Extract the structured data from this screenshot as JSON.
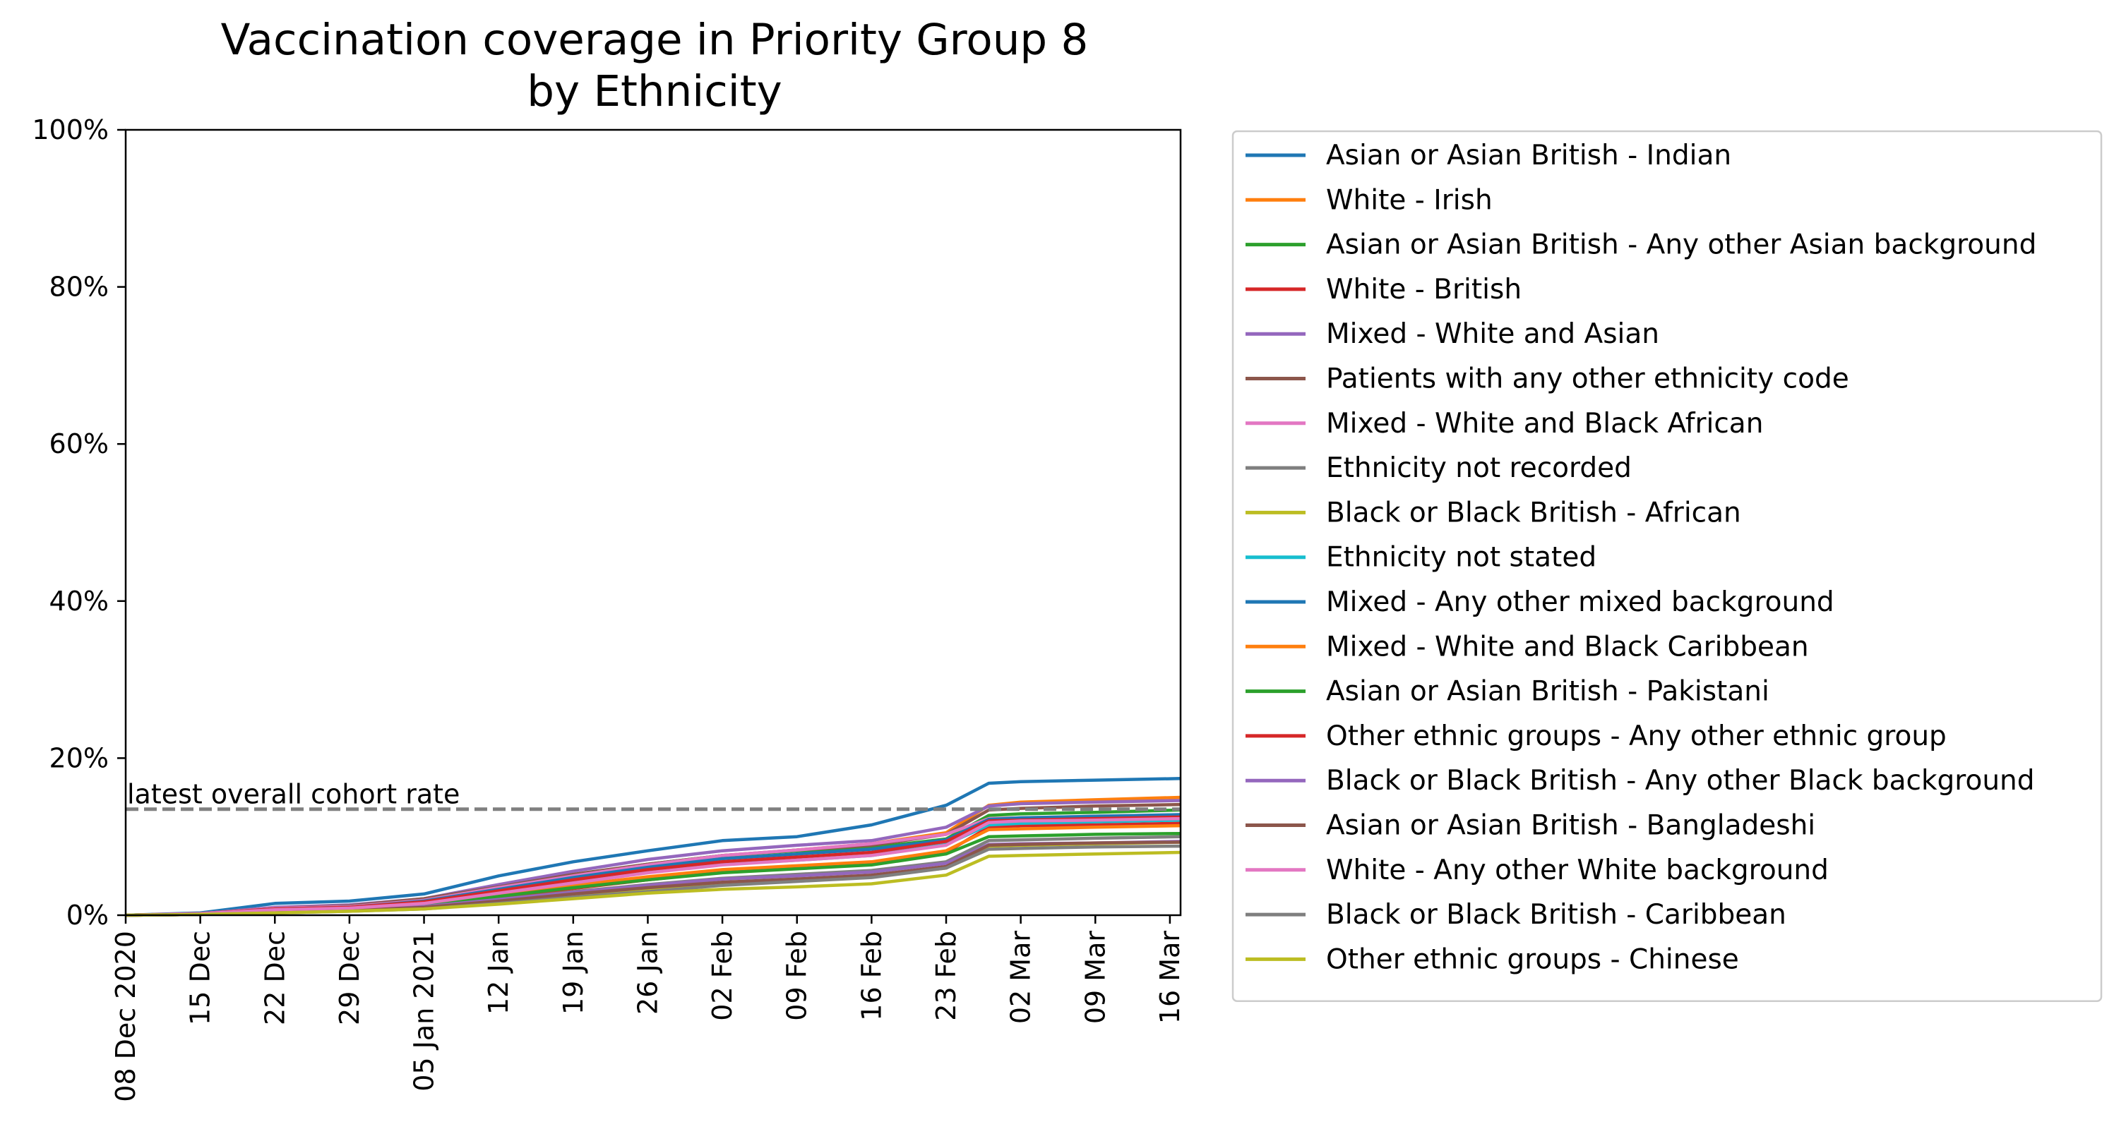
{
  "chart_data": {
    "type": "line",
    "title": "Vaccination coverage in Priority Group 8\nby Ethnicity",
    "title_lines": [
      "Vaccination coverage in Priority Group 8",
      "by Ethnicity"
    ],
    "xlabel": "",
    "ylabel": "",
    "ylim": [
      0,
      100
    ],
    "y_ticks": [
      "0%",
      "20%",
      "40%",
      "60%",
      "80%",
      "100%"
    ],
    "y_tick_values": [
      0,
      20,
      40,
      60,
      80,
      100
    ],
    "x_range_days": [
      0,
      99
    ],
    "x_ticks": [
      "08 Dec 2020",
      "15 Dec",
      "22 Dec",
      "29 Dec",
      "05 Jan 2021",
      "12 Jan",
      "19 Jan",
      "26 Jan",
      "02 Feb",
      "09 Feb",
      "16 Feb",
      "23 Feb",
      "02 Mar",
      "09 Mar",
      "16 Mar"
    ],
    "x_tick_days": [
      0,
      7,
      14,
      21,
      28,
      35,
      42,
      49,
      56,
      63,
      70,
      77,
      84,
      91,
      98
    ],
    "grid": false,
    "legend_placement": "outside-right",
    "reference_line": {
      "label": "latest overall cohort rate",
      "value": 13.5,
      "color": "#808080"
    },
    "series": [
      {
        "name": "Asian or Asian British - Indian",
        "color": "#1f77b4",
        "x": [
          0,
          7,
          14,
          21,
          28,
          35,
          42,
          49,
          56,
          63,
          70,
          77,
          81,
          84,
          91,
          99
        ],
        "y": [
          0,
          0.3,
          1.5,
          1.8,
          2.7,
          5.0,
          6.8,
          8.2,
          9.5,
          10.0,
          11.5,
          14.0,
          16.8,
          17.0,
          17.2,
          17.4
        ]
      },
      {
        "name": "White - Irish",
        "color": "#ff7f0e",
        "x": [
          0,
          7,
          14,
          21,
          28,
          35,
          42,
          49,
          56,
          63,
          70,
          77,
          81,
          84,
          91,
          99
        ],
        "y": [
          0,
          0.2,
          0.7,
          0.9,
          1.6,
          3.0,
          4.5,
          6.0,
          7.5,
          8.3,
          9.1,
          10.5,
          14.0,
          14.4,
          14.7,
          15.0
        ]
      },
      {
        "name": "Asian or Asian British - Any other Asian background",
        "color": "#2ca02c",
        "x": [
          0,
          7,
          14,
          21,
          28,
          35,
          42,
          49,
          56,
          63,
          70,
          77,
          81,
          84,
          91,
          99
        ],
        "y": [
          0,
          0.2,
          0.9,
          1.1,
          1.8,
          3.4,
          5.1,
          6.5,
          7.6,
          8.2,
          8.6,
          9.7,
          12.7,
          12.9,
          13.1,
          13.4
        ]
      },
      {
        "name": "White - British",
        "color": "#d62728",
        "x": [
          0,
          7,
          14,
          21,
          28,
          35,
          42,
          49,
          56,
          63,
          70,
          77,
          81,
          84,
          91,
          99
        ],
        "y": [
          0,
          0.1,
          0.5,
          0.7,
          1.2,
          2.2,
          3.4,
          4.5,
          5.5,
          6.1,
          6.6,
          8.0,
          11.2,
          11.4,
          11.5,
          11.7
        ]
      },
      {
        "name": "Mixed - White and Asian",
        "color": "#9467bd",
        "x": [
          0,
          7,
          14,
          21,
          28,
          35,
          42,
          49,
          56,
          63,
          70,
          77,
          81,
          84,
          91,
          99
        ],
        "y": [
          0,
          0.2,
          1.0,
          1.3,
          2.1,
          3.9,
          5.6,
          7.1,
          8.2,
          8.9,
          9.5,
          11.2,
          13.9,
          14.2,
          14.4,
          14.6
        ]
      },
      {
        "name": "Patients with any other ethnicity code",
        "color": "#8c564b",
        "x": [
          0,
          7,
          14,
          21,
          28,
          35,
          42,
          49,
          56,
          63,
          70,
          77,
          81,
          84,
          91,
          99
        ],
        "y": [
          0,
          0.2,
          0.9,
          1.2,
          2.1,
          3.6,
          5.2,
          6.5,
          7.6,
          8.3,
          8.9,
          10.3,
          13.4,
          13.6,
          13.9,
          14.1
        ]
      },
      {
        "name": "Mixed - White and Black African",
        "color": "#e377c2",
        "x": [
          0,
          7,
          14,
          21,
          28,
          35,
          42,
          49,
          56,
          63,
          70,
          77,
          81,
          84,
          91,
          99
        ],
        "y": [
          0,
          0.2,
          0.9,
          1.1,
          1.9,
          3.5,
          5.0,
          6.4,
          7.6,
          8.3,
          9.1,
          10.3,
          12.3,
          12.4,
          12.6,
          12.8
        ]
      },
      {
        "name": "Ethnicity not recorded",
        "color": "#7f7f7f",
        "x": [
          0,
          7,
          14,
          21,
          28,
          35,
          42,
          49,
          56,
          63,
          70,
          77,
          81,
          84,
          91,
          99
        ],
        "y": [
          0,
          0.1,
          0.5,
          0.7,
          1.1,
          2.0,
          3.0,
          3.9,
          4.7,
          5.2,
          5.7,
          6.8,
          9.5,
          9.6,
          9.8,
          10.0
        ]
      },
      {
        "name": "Black or Black British - African",
        "color": "#bcbd22",
        "x": [
          0,
          7,
          14,
          21,
          28,
          35,
          42,
          49,
          56,
          63,
          70,
          77,
          81,
          84,
          91,
          99
        ],
        "y": [
          0,
          0.1,
          0.4,
          0.6,
          1.0,
          1.8,
          2.6,
          3.4,
          4.1,
          4.6,
          5.0,
          6.0,
          8.8,
          8.9,
          9.1,
          9.3
        ]
      },
      {
        "name": "Ethnicity not stated",
        "color": "#17becf",
        "x": [
          0,
          7,
          14,
          21,
          28,
          35,
          42,
          49,
          56,
          63,
          70,
          77,
          81,
          84,
          91,
          99
        ],
        "y": [
          0,
          0.2,
          0.8,
          1.0,
          1.7,
          3.0,
          4.4,
          5.7,
          6.5,
          7.0,
          7.6,
          9.0,
          11.5,
          11.7,
          11.9,
          12.1
        ]
      },
      {
        "name": "Mixed - Any other mixed background",
        "color": "#1f77b4",
        "x": [
          0,
          7,
          14,
          21,
          28,
          35,
          42,
          49,
          56,
          63,
          70,
          77,
          81,
          84,
          91,
          99
        ],
        "y": [
          0,
          0.2,
          0.8,
          1.0,
          1.8,
          3.3,
          4.8,
          6.1,
          7.2,
          7.8,
          8.4,
          9.6,
          12.2,
          12.4,
          12.6,
          12.8
        ]
      },
      {
        "name": "Mixed - White and Black Caribbean",
        "color": "#ff7f0e",
        "x": [
          0,
          7,
          14,
          21,
          28,
          35,
          42,
          49,
          56,
          63,
          70,
          77,
          81,
          84,
          91,
          99
        ],
        "y": [
          0,
          0.1,
          0.6,
          0.8,
          1.4,
          2.6,
          3.8,
          4.9,
          5.8,
          6.3,
          6.8,
          8.2,
          10.9,
          11.0,
          11.2,
          11.4
        ]
      },
      {
        "name": "Asian or Asian British - Pakistani",
        "color": "#2ca02c",
        "x": [
          0,
          7,
          14,
          21,
          28,
          35,
          42,
          49,
          56,
          63,
          70,
          77,
          81,
          84,
          91,
          99
        ],
        "y": [
          0,
          0.1,
          0.6,
          0.8,
          1.3,
          2.4,
          3.5,
          4.5,
          5.4,
          5.9,
          6.4,
          7.8,
          10.0,
          10.1,
          10.3,
          10.4
        ]
      },
      {
        "name": "Other ethnic groups - Any other ethnic group",
        "color": "#d62728",
        "x": [
          0,
          7,
          14,
          21,
          28,
          35,
          42,
          49,
          56,
          63,
          70,
          77,
          81,
          84,
          91,
          99
        ],
        "y": [
          0,
          0.2,
          0.8,
          1.0,
          1.7,
          3.1,
          4.5,
          5.8,
          6.8,
          7.4,
          8.0,
          9.4,
          12.0,
          12.1,
          12.3,
          12.5
        ]
      },
      {
        "name": "Black or Black British - Any other Black background",
        "color": "#9467bd",
        "x": [
          0,
          7,
          14,
          21,
          28,
          35,
          42,
          49,
          56,
          63,
          70,
          77,
          81,
          84,
          91,
          99
        ],
        "y": [
          0,
          0.1,
          0.5,
          0.7,
          1.1,
          2.0,
          2.9,
          3.8,
          4.6,
          5.0,
          5.5,
          6.6,
          9.0,
          9.1,
          9.2,
          9.4
        ]
      },
      {
        "name": "Asian or Asian British - Bangladeshi",
        "color": "#8c564b",
        "x": [
          0,
          7,
          14,
          21,
          28,
          35,
          42,
          49,
          56,
          63,
          70,
          77,
          81,
          84,
          91,
          99
        ],
        "y": [
          0,
          0.1,
          0.4,
          0.6,
          1.0,
          1.8,
          2.7,
          3.5,
          4.2,
          4.6,
          5.1,
          6.2,
          8.9,
          9.0,
          9.2,
          9.3
        ]
      },
      {
        "name": "White - Any other White background",
        "color": "#e377c2",
        "x": [
          0,
          7,
          14,
          21,
          28,
          35,
          42,
          49,
          56,
          63,
          70,
          77,
          81,
          84,
          91,
          99
        ],
        "y": [
          0,
          0.2,
          0.7,
          0.9,
          1.5,
          2.8,
          4.1,
          5.4,
          6.4,
          7.0,
          7.6,
          8.9,
          11.8,
          12.0,
          12.1,
          12.3
        ]
      },
      {
        "name": "Black or Black British - Caribbean",
        "color": "#7f7f7f",
        "x": [
          0,
          7,
          14,
          21,
          28,
          35,
          42,
          49,
          56,
          63,
          70,
          77,
          81,
          84,
          91,
          99
        ],
        "y": [
          0,
          0.1,
          0.3,
          0.5,
          0.8,
          1.5,
          2.3,
          3.0,
          3.8,
          4.3,
          4.8,
          6.0,
          8.4,
          8.5,
          8.7,
          8.8
        ]
      },
      {
        "name": "Other ethnic groups - Chinese",
        "color": "#bcbd22",
        "x": [
          0,
          7,
          14,
          21,
          28,
          35,
          42,
          49,
          56,
          63,
          70,
          77,
          81,
          84,
          91,
          99
        ],
        "y": [
          0,
          0.1,
          0.3,
          0.5,
          0.8,
          1.4,
          2.1,
          2.8,
          3.3,
          3.6,
          4.0,
          5.1,
          7.5,
          7.6,
          7.8,
          8.0
        ]
      }
    ]
  }
}
